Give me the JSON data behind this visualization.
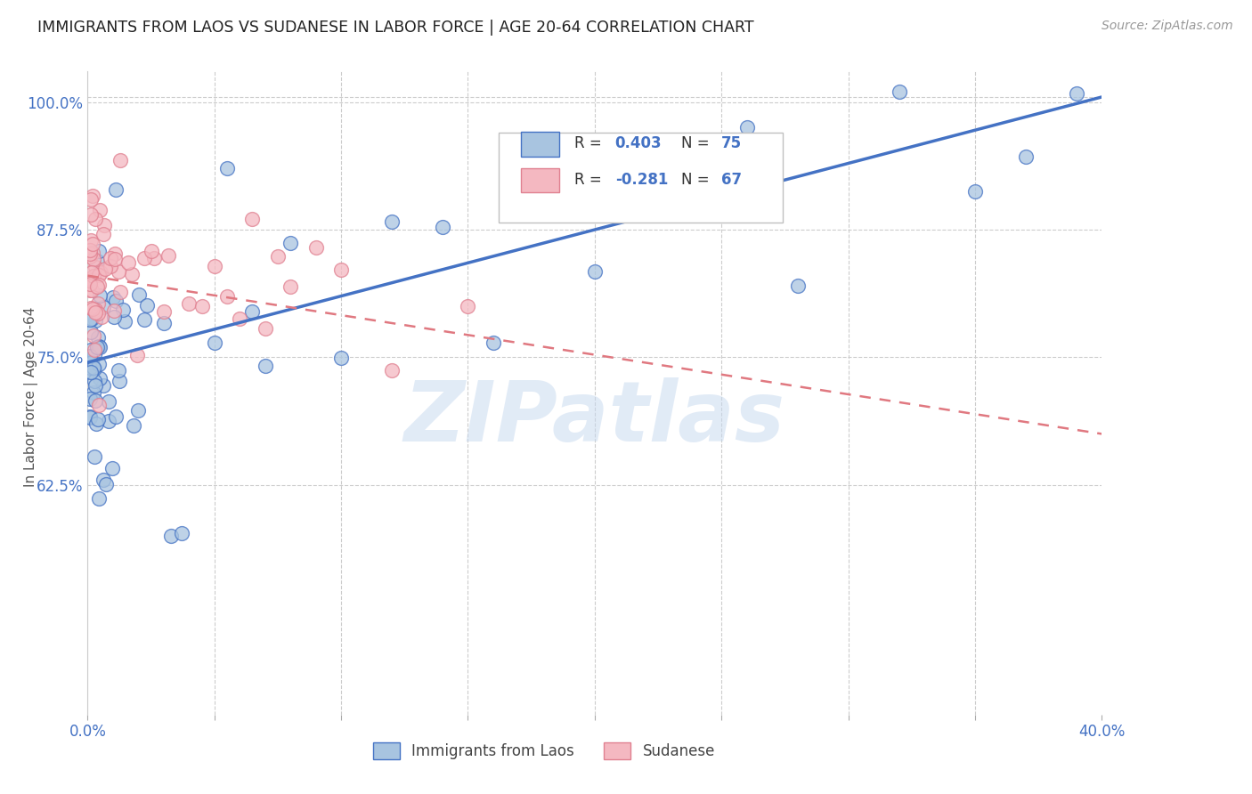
{
  "title": "IMMIGRANTS FROM LAOS VS SUDANESE IN LABOR FORCE | AGE 20-64 CORRELATION CHART",
  "source": "Source: ZipAtlas.com",
  "ylabel": "In Labor Force | Age 20-64",
  "xlim": [
    0.0,
    0.4
  ],
  "ylim": [
    0.4,
    1.03
  ],
  "color_laos": "#a8c4e0",
  "color_sudanese": "#f4b8c1",
  "color_laos_line": "#4472c4",
  "color_sudanese_line": "#e07880",
  "color_axis_labels": "#4472c4",
  "watermark": "ZIPatlas",
  "background_color": "#ffffff",
  "grid_color": "#cccccc",
  "laos_trendline_x0": 0.0,
  "laos_trendline_y0": 0.745,
  "laos_trendline_x1": 0.4,
  "laos_trendline_y1": 1.005,
  "sud_trendline_x0": 0.0,
  "sud_trendline_y0": 0.83,
  "sud_trendline_x1": 0.4,
  "sud_trendline_y1": 0.675
}
